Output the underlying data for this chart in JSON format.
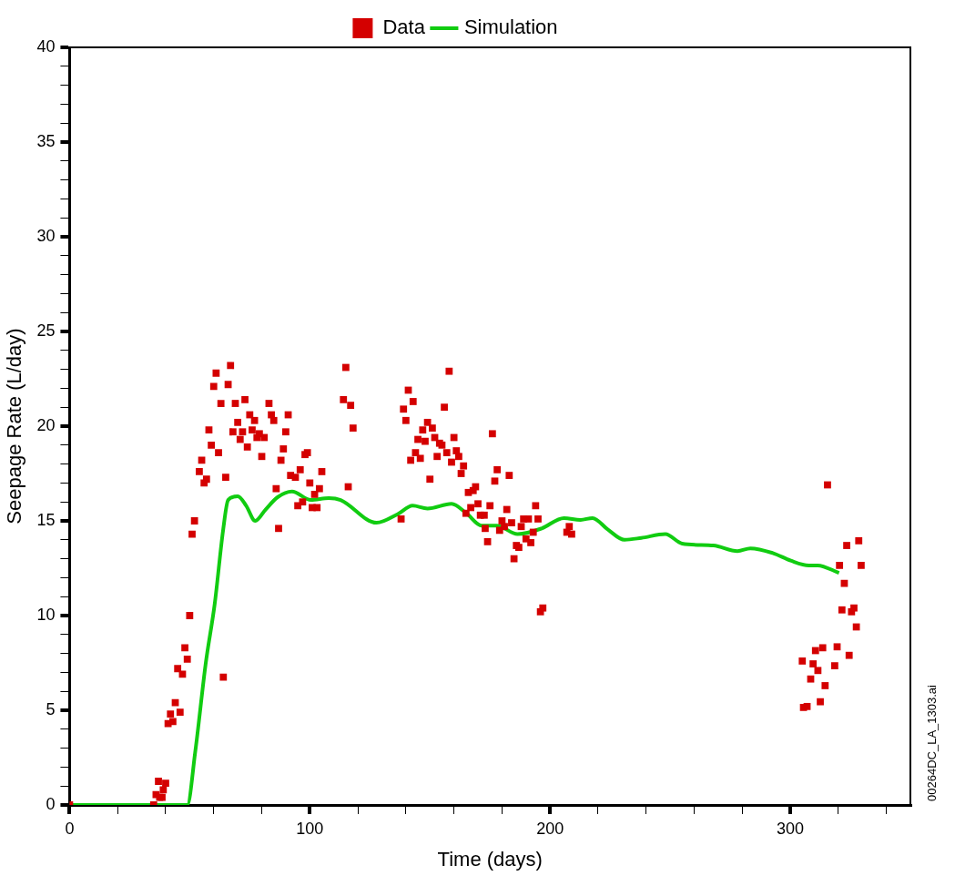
{
  "chart_data": {
    "type": "scatter",
    "xlabel": "Time (days)",
    "ylabel": "Seepage Rate (L/day)",
    "legend": "top",
    "grid": false,
    "annotations": [
      "00264DC_LA_1303.ai"
    ],
    "xlim": [
      0,
      350
    ],
    "ylim": [
      0,
      40
    ],
    "xticks": [
      0,
      {
        "value": 20,
        "label": null
      },
      {
        "value": 40,
        "label": null
      },
      {
        "value": 60,
        "label": null
      },
      {
        "value": 80,
        "label": null
      },
      100,
      {
        "value": 120,
        "label": null
      },
      {
        "value": 140,
        "label": null
      },
      {
        "value": 160,
        "label": null
      },
      {
        "value": 180,
        "label": null
      },
      200,
      {
        "value": 220,
        "label": null
      },
      {
        "value": 240,
        "label": null
      },
      {
        "value": 260,
        "label": null
      },
      {
        "value": 280,
        "label": null
      },
      300,
      {
        "value": 320,
        "label": null
      },
      {
        "value": 340,
        "label": null
      }
    ],
    "yticks": [
      0,
      {
        "value": 1,
        "label": null
      },
      {
        "value": 2,
        "label": null
      },
      {
        "value": 3,
        "label": null
      },
      {
        "value": 4,
        "label": null
      },
      5,
      {
        "value": 6,
        "label": null
      },
      {
        "value": 7,
        "label": null
      },
      {
        "value": 8,
        "label": null
      },
      {
        "value": 9,
        "label": null
      },
      10,
      {
        "value": 11,
        "label": null
      },
      {
        "value": 12,
        "label": null
      },
      {
        "value": 13,
        "label": null
      },
      {
        "value": 14,
        "label": null
      },
      15,
      {
        "value": 16,
        "label": null
      },
      {
        "value": 17,
        "label": null
      },
      {
        "value": 18,
        "label": null
      },
      {
        "value": 19,
        "label": null
      },
      20,
      {
        "value": 21,
        "label": null
      },
      {
        "value": 22,
        "label": null
      },
      {
        "value": 23,
        "label": null
      },
      {
        "value": 24,
        "label": null
      },
      25,
      {
        "value": 26,
        "label": null
      },
      {
        "value": 27,
        "label": null
      },
      {
        "value": 28,
        "label": null
      },
      {
        "value": 29,
        "label": null
      },
      30,
      {
        "value": 31,
        "label": null
      },
      {
        "value": 32,
        "label": null
      },
      {
        "value": 33,
        "label": null
      },
      {
        "value": 34,
        "label": null
      },
      35,
      {
        "value": 36,
        "label": null
      },
      {
        "value": 37,
        "label": null
      },
      {
        "value": 38,
        "label": null
      },
      {
        "value": 39,
        "label": null
      },
      40
    ],
    "series": [
      {
        "name": "Data",
        "type": "scatter",
        "marker": "square",
        "color": "#d40000",
        "x": [
          0,
          35,
          36,
          37,
          37.5,
          38.5,
          39,
          40,
          41,
          42,
          43,
          44,
          45,
          46,
          47,
          48,
          49,
          50,
          51,
          52,
          54,
          55,
          56,
          57,
          58,
          59,
          60,
          61,
          62,
          63,
          64,
          65,
          66,
          67,
          68,
          69,
          70,
          71,
          72,
          73,
          74,
          75,
          76,
          77,
          78,
          79,
          80,
          81,
          83,
          84,
          85,
          86,
          87,
          88,
          89,
          90,
          91,
          92,
          94,
          95,
          96,
          97,
          98,
          99,
          100,
          101,
          102,
          103,
          104,
          105,
          114,
          115,
          116,
          117,
          118,
          138,
          139,
          140,
          141,
          142,
          143,
          144,
          145,
          146,
          147,
          148,
          149,
          150,
          151,
          152,
          153,
          154,
          155,
          156,
          157,
          158,
          159,
          160,
          161,
          162,
          163,
          164,
          165,
          166,
          167,
          168,
          169,
          170,
          171,
          172.6,
          173,
          174,
          175,
          176,
          177,
          178,
          179,
          180,
          181,
          182,
          183,
          184,
          185,
          186,
          187,
          188,
          189,
          190,
          191,
          192,
          193,
          194,
          195,
          196,
          197,
          207,
          208,
          209,
          305,
          305.5,
          307,
          308.5,
          309.5,
          310.5,
          311.5,
          312.5,
          313.5,
          314.5,
          315.5,
          318.5,
          319.5,
          320.5,
          321.5,
          322.5,
          323.5,
          324.5,
          325.5,
          326.5,
          327.5,
          328.5,
          329.5
        ],
        "values": [
          0,
          0,
          0.55,
          1.25,
          0.4,
          0.4,
          0.8,
          1.15,
          4.3,
          4.8,
          4.4,
          5.4,
          7.2,
          4.9,
          6.9,
          8.3,
          7.7,
          10,
          14.3,
          15,
          17.6,
          18.2,
          17,
          17.2,
          19.8,
          19,
          22.1,
          22.8,
          18.6,
          21.2,
          6.75,
          17.3,
          22.2,
          23.2,
          19.7,
          21.2,
          20.2,
          19.3,
          19.7,
          21.4,
          18.9,
          20.6,
          19.8,
          20.3,
          19.4,
          19.6,
          18.4,
          19.4,
          21.2,
          20.6,
          20.3,
          16.7,
          14.6,
          18.2,
          18.8,
          19.7,
          20.6,
          17.4,
          17.3,
          15.8,
          17.7,
          16,
          18.5,
          18.6,
          17,
          15.7,
          16.4,
          15.7,
          16.7,
          17.6,
          21.4,
          23.1,
          16.8,
          21.1,
          19.9,
          15.1,
          20.9,
          20.3,
          21.9,
          18.2,
          21.3,
          18.6,
          19.3,
          18.3,
          19.8,
          19.2,
          20.2,
          17.2,
          19.9,
          19.4,
          18.4,
          19.1,
          19,
          21,
          18.6,
          22.9,
          18.1,
          19.4,
          18.7,
          18.4,
          17.5,
          17.9,
          15.4,
          16.5,
          15.7,
          16.6,
          16.8,
          15.9,
          15.3,
          15.3,
          14.6,
          13.9,
          15.8,
          19.6,
          17.1,
          17.7,
          14.5,
          15,
          14.7,
          15.6,
          17.4,
          14.9,
          13,
          13.7,
          13.6,
          14.7,
          15.1,
          14.05,
          15.1,
          13.85,
          14.4,
          15.8,
          15.1,
          10.2,
          10.4,
          14.4,
          14.7,
          14.3,
          7.6,
          5.15,
          5.2,
          6.65,
          7.45,
          8.15,
          7.1,
          5.45,
          8.3,
          6.3,
          16.9,
          7.35,
          8.35,
          12.65,
          10.3,
          11.7,
          13.7,
          7.9,
          10.2,
          10.4,
          9.4,
          13.95,
          12.65
        ]
      },
      {
        "name": "Simulation",
        "type": "line",
        "marker": "none",
        "line_style": "solid",
        "color": "#11cc11",
        "x": [
          0,
          49,
          52.3,
          56.7,
          60.4,
          63.9,
          66,
          70,
          73.5,
          77.3,
          81.6,
          86.6,
          92.6,
          100.4,
          107.9,
          112.8,
          127.8,
          136.5,
          142.8,
          149,
          159,
          165.2,
          171.5,
          177.8,
          186.5,
          196.5,
          205.8,
          212.7,
          217.7,
          224,
          231,
          238,
          248,
          255,
          268,
          278,
          283.4,
          292.7,
          300.2,
          307.7,
          311.4,
          320.3
        ],
        "values": [
          0,
          0,
          2.8,
          7.5,
          10.6,
          14.5,
          16.1,
          16.3,
          15.8,
          15,
          15.6,
          16.25,
          16.55,
          16.1,
          16.2,
          16.1,
          14.9,
          15.35,
          15.8,
          15.65,
          15.9,
          15.4,
          14.75,
          14.75,
          14.3,
          14.6,
          15.15,
          15.05,
          15.15,
          14.55,
          14,
          14.1,
          14.3,
          13.8,
          13.7,
          13.4,
          13.55,
          13.3,
          12.9,
          12.65,
          12.65,
          12.25
        ]
      }
    ]
  }
}
